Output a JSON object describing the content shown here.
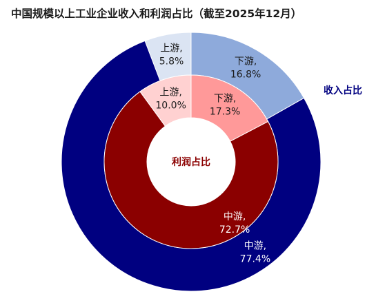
{
  "chart_data": {
    "type": "pie",
    "title": "中国规模以上工业企业收入和利润占比（截至2025年12月）",
    "categories": [
      "上游",
      "中游",
      "下游"
    ],
    "series": [
      {
        "name": "收入占比",
        "values": [
          5.8,
          77.4,
          16.8
        ],
        "labels": [
          "上游,\n5.8%",
          "中游,\n77.4%",
          "下游,\n16.8%"
        ],
        "colors": [
          "#dbe4f3",
          "#000080",
          "#8eaadb"
        ],
        "label_colors": [
          "#1a1a1a",
          "#ffffff",
          "#1a1a1a"
        ]
      },
      {
        "name": "利润占比",
        "values": [
          10.0,
          72.7,
          17.3
        ],
        "labels": [
          "上游,\n10.0%",
          "中游,\n72.7%",
          "下游,\n17.3%"
        ],
        "colors": [
          "#ffd1d1",
          "#8b0000",
          "#ff9999"
        ],
        "label_colors": [
          "#1a1a1a",
          "#ffffff",
          "#1a1a1a"
        ]
      }
    ],
    "annotations": [
      "收入占比",
      "利润占比"
    ],
    "annotation_colors": [
      "#000080",
      "#8b0000"
    ],
    "start_angle": "12 o'clock",
    "direction": "counterclockwise",
    "legend": "none"
  }
}
